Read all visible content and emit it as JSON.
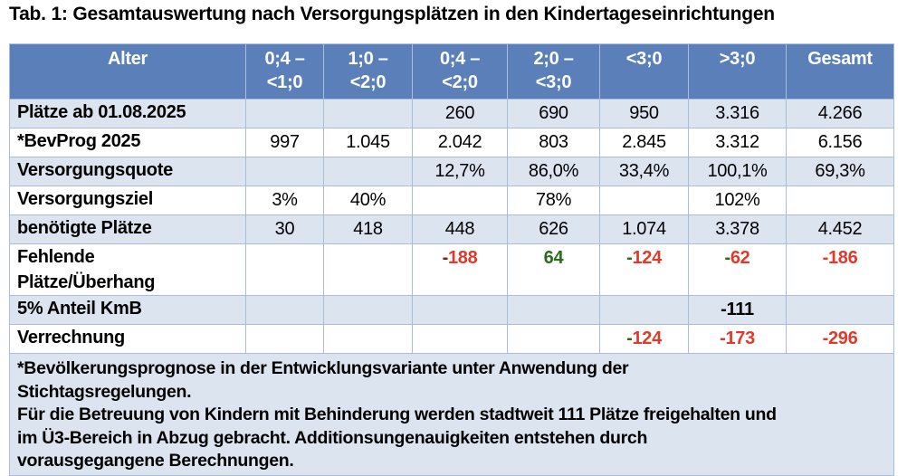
{
  "title": "Tab. 1: Gesamtauswertung nach Versorgungsplätzen in den Kindertageseinrichtungen",
  "colors": {
    "header_bg": "#5b80b9",
    "row_alt_bg": "#dce4f0",
    "negative": "#e03a2c",
    "positive": "#2c6a1e"
  },
  "headers": [
    "Alter",
    "0;4 –\n<1;0",
    "1;0 –\n<2;0",
    "0;4 –\n<2;0",
    "2;0 –\n<3;0",
    "<3;0",
    ">3;0",
    "Gesamt"
  ],
  "rows": [
    {
      "label": "Plätze ab 01.08.2025",
      "cells": [
        "",
        "",
        "260",
        "690",
        "950",
        "3.316",
        "4.266"
      ]
    },
    {
      "label": "*BevProg 2025",
      "cells": [
        "997",
        "1.045",
        "2.042",
        "803",
        "2.845",
        "3.312",
        "6.156"
      ]
    },
    {
      "label": "Versorgungsquote",
      "cells": [
        "",
        "",
        "12,7%",
        "86,0%",
        "33,4%",
        "100,1%",
        "69,3%"
      ]
    },
    {
      "label": "Versorgungsziel",
      "cells": [
        "3%",
        "40%",
        "",
        "78%",
        "",
        "102%",
        ""
      ]
    },
    {
      "label": "benötigte Plätze",
      "cells": [
        "30",
        "418",
        "448",
        "626",
        "1.074",
        "3.378",
        "4.452"
      ]
    },
    {
      "label": "Fehlende\nPlätze/Überhang",
      "cells": [
        "",
        "",
        {
          "sign": "-",
          "num": "188",
          "sign_color": "dred",
          "color": "red"
        },
        {
          "sign": "",
          "num": "64",
          "sign_color": "green",
          "color": "green"
        },
        {
          "sign": "-",
          "num": "124",
          "sign_color": "green",
          "color": "red"
        },
        {
          "sign": "-",
          "num": "62",
          "sign_color": "green",
          "color": "red"
        },
        {
          "sign": "-",
          "num": "186",
          "sign_color": "red",
          "color": "red"
        }
      ]
    },
    {
      "label": "5% Anteil KmB",
      "cells": [
        "",
        "",
        "",
        "",
        "",
        {
          "sign": "-",
          "num": "111",
          "sign_color": "black",
          "color": "black"
        },
        ""
      ]
    },
    {
      "label": "Verrechnung",
      "cells": [
        "",
        "",
        "",
        "",
        {
          "sign": "-",
          "num": "124",
          "sign_color": "green",
          "color": "red"
        },
        {
          "sign": "-",
          "num": "173",
          "sign_color": "red",
          "color": "red"
        },
        {
          "sign": "-",
          "num": "296",
          "sign_color": "red",
          "color": "red"
        }
      ]
    }
  ],
  "footnote": [
    "*Bevölkerungsprognose in der Entwicklungsvariante unter Anwendung der",
    "Stichtagsregelungen.",
    "Für die Betreuung von Kindern mit Behinderung werden stadtweit 111 Plätze freigehalten und",
    "im Ü3-Bereich in Abzug gebracht. Additionsungenauigkeiten entstehen durch",
    "vorausgegangene Berechnungen."
  ]
}
